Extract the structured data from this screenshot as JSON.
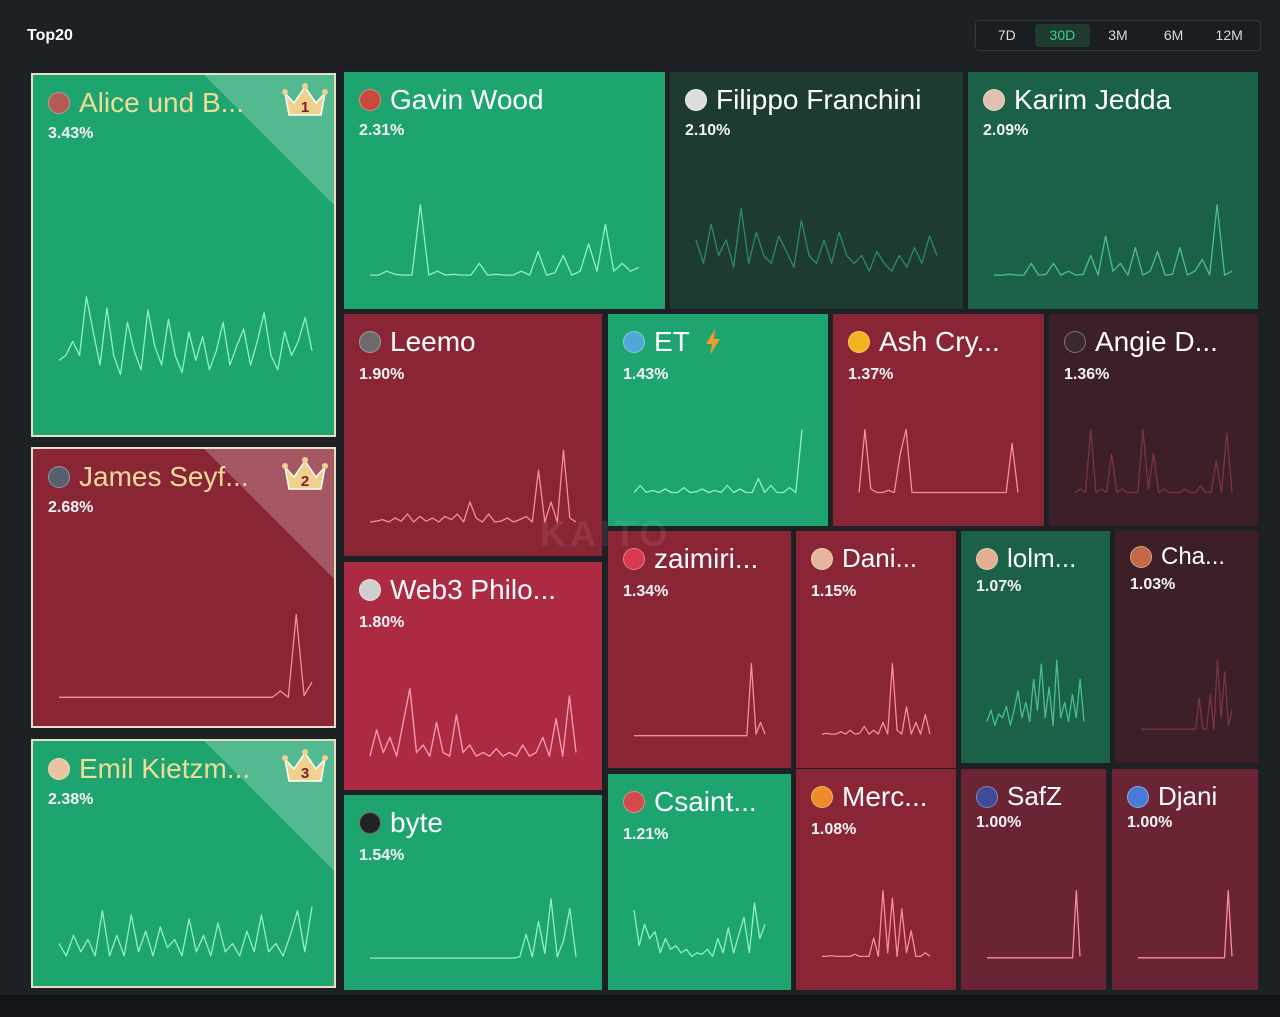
{
  "header": {
    "title": "Top20"
  },
  "ranges": {
    "options": [
      "7D",
      "30D",
      "3M",
      "6M",
      "12M"
    ],
    "selected": "30D"
  },
  "colors": {
    "green_bright": "#1ea46e",
    "green_dark": "#1d3b30",
    "green_mid": "#1a6147",
    "red": "#8a2536",
    "red_bright": "#ad2a43",
    "maroon": "#3d1f27",
    "line_green": "#6ef0b2",
    "line_red": "#ff8aa0",
    "crown_gold": "#efd08c"
  },
  "tiles": [
    {
      "name": "Alice und B...",
      "percent": "3.43%",
      "rank": "1",
      "color": "#1ea46e",
      "line": "#8ff2c1",
      "avatar_color": "#b25a55",
      "spark": [
        0.25,
        0.3,
        0.45,
        0.3,
        0.92,
        0.55,
        0.2,
        0.8,
        0.3,
        0.1,
        0.65,
        0.35,
        0.15,
        0.78,
        0.4,
        0.2,
        0.68,
        0.3,
        0.12,
        0.55,
        0.25,
        0.5,
        0.15,
        0.35,
        0.65,
        0.2,
        0.4,
        0.58,
        0.2,
        0.45,
        0.75,
        0.3,
        0.15,
        0.55,
        0.3,
        0.45,
        0.7,
        0.35
      ]
    },
    {
      "name": "Gavin Wood",
      "percent": "2.31%",
      "rank": "",
      "color": "#1ea46e",
      "line": "#8ff2c1",
      "avatar_color": "#c94a3d",
      "spark": [
        0.05,
        0.05,
        0.1,
        0.06,
        0.05,
        0.05,
        0.95,
        0.05,
        0.1,
        0.05,
        0.06,
        0.05,
        0.05,
        0.2,
        0.05,
        0.06,
        0.05,
        0.05,
        0.1,
        0.05,
        0.35,
        0.05,
        0.08,
        0.3,
        0.05,
        0.1,
        0.45,
        0.1,
        0.7,
        0.1,
        0.2,
        0.1,
        0.15
      ]
    },
    {
      "name": "Filippo Franchini",
      "percent": "2.10%",
      "rank": "",
      "color": "#1d3b30",
      "line": "#2f8b61",
      "avatar_color": "#dddddd",
      "spark": [
        0.5,
        0.2,
        0.7,
        0.3,
        0.5,
        0.15,
        0.9,
        0.2,
        0.6,
        0.3,
        0.2,
        0.55,
        0.35,
        0.15,
        0.75,
        0.3,
        0.2,
        0.5,
        0.2,
        0.6,
        0.3,
        0.2,
        0.3,
        0.1,
        0.35,
        0.2,
        0.1,
        0.3,
        0.15,
        0.4,
        0.2,
        0.55,
        0.3
      ]
    },
    {
      "name": "Karim Jedda",
      "percent": "2.09%",
      "rank": "",
      "color": "#1a6147",
      "line": "#4cc08b",
      "avatar_color": "#e0c0b0",
      "spark": [
        0.05,
        0.05,
        0.06,
        0.05,
        0.05,
        0.2,
        0.05,
        0.06,
        0.2,
        0.05,
        0.1,
        0.05,
        0.06,
        0.3,
        0.05,
        0.55,
        0.1,
        0.2,
        0.05,
        0.4,
        0.05,
        0.1,
        0.35,
        0.05,
        0.06,
        0.4,
        0.05,
        0.1,
        0.25,
        0.05,
        0.95,
        0.05,
        0.1
      ]
    },
    {
      "name": "Leemo",
      "percent": "1.90%",
      "rank": "",
      "color": "#8a2536",
      "line": "#ff8aa0",
      "avatar_color": "#6b6b6b",
      "spark": [
        0.05,
        0.06,
        0.08,
        0.05,
        0.1,
        0.06,
        0.15,
        0.05,
        0.12,
        0.06,
        0.1,
        0.05,
        0.12,
        0.08,
        0.15,
        0.05,
        0.3,
        0.1,
        0.05,
        0.15,
        0.05,
        0.06,
        0.1,
        0.05,
        0.08,
        0.12,
        0.05,
        0.7,
        0.05,
        0.3,
        0.05,
        0.95,
        0.1,
        0.05
      ]
    },
    {
      "name": "ET",
      "percent": "1.43%",
      "rank": "",
      "bolt": true,
      "color": "#1ea46e",
      "line": "#8ff2c1",
      "avatar_color": "#4fa8d8",
      "spark": [
        0.05,
        0.15,
        0.05,
        0.08,
        0.05,
        0.1,
        0.05,
        0.05,
        0.12,
        0.05,
        0.06,
        0.1,
        0.05,
        0.08,
        0.05,
        0.15,
        0.05,
        0.1,
        0.05,
        0.05,
        0.25,
        0.05,
        0.15,
        0.05,
        0.05,
        0.12,
        0.05,
        0.95
      ]
    },
    {
      "name": "Ash Cry...",
      "percent": "1.37%",
      "rank": "",
      "color": "#8a2536",
      "line": "#ff8aa0",
      "avatar_color": "#f2b31f",
      "spark": [
        0.05,
        0.95,
        0.1,
        0.05,
        0.05,
        0.08,
        0.05,
        0.6,
        0.95,
        0.05,
        0.05,
        0.05,
        0.05,
        0.05,
        0.05,
        0.05,
        0.05,
        0.05,
        0.05,
        0.05,
        0.05,
        0.05,
        0.05,
        0.05,
        0.05,
        0.05,
        0.75,
        0.05
      ]
    },
    {
      "name": "Angie D...",
      "percent": "1.36%",
      "rank": "",
      "color": "#3d1f27",
      "line": "#7a3444",
      "avatar_color": "#3a2a2e",
      "spark": [
        0.05,
        0.1,
        0.05,
        0.95,
        0.05,
        0.1,
        0.05,
        0.6,
        0.05,
        0.1,
        0.05,
        0.05,
        0.05,
        0.95,
        0.1,
        0.6,
        0.05,
        0.1,
        0.05,
        0.05,
        0.05,
        0.1,
        0.05,
        0.05,
        0.15,
        0.05,
        0.05,
        0.5,
        0.05,
        0.9,
        0.05
      ]
    },
    {
      "name": "James Seyf...",
      "percent": "2.68%",
      "rank": "2",
      "color": "#8a2536",
      "line": "#ff8aa0",
      "avatar_color": "#55626e",
      "spark": [
        0.03,
        0.03,
        0.03,
        0.03,
        0.03,
        0.03,
        0.03,
        0.03,
        0.03,
        0.03,
        0.03,
        0.03,
        0.03,
        0.03,
        0.03,
        0.03,
        0.03,
        0.03,
        0.03,
        0.03,
        0.03,
        0.03,
        0.03,
        0.03,
        0.03,
        0.03,
        0.03,
        0.03,
        0.1,
        0.03,
        0.95,
        0.05,
        0.2
      ]
    },
    {
      "name": "Web3 Philo...",
      "percent": "1.80%",
      "rank": "",
      "color": "#ad2a43",
      "line": "#ff9fb1",
      "avatar_color": "#cfcfcf",
      "spark": [
        0.05,
        0.4,
        0.1,
        0.3,
        0.05,
        0.5,
        0.95,
        0.1,
        0.2,
        0.05,
        0.5,
        0.1,
        0.05,
        0.6,
        0.1,
        0.2,
        0.05,
        0.1,
        0.05,
        0.15,
        0.05,
        0.1,
        0.05,
        0.2,
        0.05,
        0.1,
        0.3,
        0.05,
        0.55,
        0.05,
        0.85,
        0.1
      ]
    },
    {
      "name": "zaimiri...",
      "percent": "1.34%",
      "rank": "",
      "color": "#8a2536",
      "line": "#ff8aa0",
      "avatar_color": "#d83a4d",
      "spark": [
        0.03,
        0.03,
        0.03,
        0.03,
        0.03,
        0.03,
        0.03,
        0.03,
        0.03,
        0.03,
        0.03,
        0.03,
        0.03,
        0.03,
        0.03,
        0.03,
        0.03,
        0.03,
        0.03,
        0.03,
        0.03,
        0.03,
        0.03,
        0.03,
        0.03,
        0.03,
        0.95,
        0.05,
        0.2,
        0.05
      ]
    },
    {
      "name": "Dani...",
      "percent": "1.15%",
      "rank": "",
      "color": "#8a2536",
      "line": "#ff8aa0",
      "avatar_color": "#e5b69a",
      "spark": [
        0.05,
        0.06,
        0.05,
        0.05,
        0.08,
        0.05,
        0.1,
        0.05,
        0.06,
        0.15,
        0.05,
        0.1,
        0.05,
        0.2,
        0.05,
        0.95,
        0.1,
        0.05,
        0.4,
        0.05,
        0.2,
        0.05,
        0.3,
        0.05
      ]
    },
    {
      "name": "lolm...",
      "percent": "1.07%",
      "rank": "",
      "color": "#1a6147",
      "line": "#4cc08b",
      "avatar_color": "#e0b090",
      "spark": [
        0.15,
        0.3,
        0.1,
        0.25,
        0.2,
        0.35,
        0.1,
        0.3,
        0.55,
        0.2,
        0.4,
        0.15,
        0.7,
        0.3,
        0.9,
        0.2,
        0.6,
        0.1,
        0.95,
        0.2,
        0.4,
        0.15,
        0.5,
        0.2,
        0.7,
        0.15
      ]
    },
    {
      "name": "Cha...",
      "percent": "1.03%",
      "rank": "",
      "color": "#3d1f27",
      "line": "#7a3444",
      "avatar_color": "#c26a48",
      "spark": [
        0.05,
        0.05,
        0.05,
        0.05,
        0.05,
        0.05,
        0.05,
        0.05,
        0.05,
        0.05,
        0.05,
        0.05,
        0.05,
        0.05,
        0.05,
        0.05,
        0.45,
        0.05,
        0.05,
        0.5,
        0.05,
        0.95,
        0.2,
        0.8,
        0.1,
        0.3
      ]
    },
    {
      "name": "Emil Kietzm...",
      "percent": "2.38%",
      "rank": "3",
      "color": "#1ea46e",
      "line": "#8ff2c1",
      "avatar_color": "#e8c4a2",
      "spark": [
        0.2,
        0.05,
        0.3,
        0.1,
        0.25,
        0.05,
        0.6,
        0.05,
        0.3,
        0.05,
        0.55,
        0.1,
        0.35,
        0.05,
        0.4,
        0.15,
        0.25,
        0.05,
        0.5,
        0.1,
        0.3,
        0.05,
        0.45,
        0.1,
        0.2,
        0.05,
        0.35,
        0.1,
        0.55,
        0.1,
        0.2,
        0.05,
        0.3,
        0.6,
        0.1,
        0.65
      ]
    },
    {
      "name": "byte",
      "percent": "1.54%",
      "rank": "",
      "color": "#1ea46e",
      "line": "#8ff2c1",
      "avatar_color": "#222222",
      "spark": [
        0.03,
        0.03,
        0.03,
        0.03,
        0.03,
        0.03,
        0.03,
        0.03,
        0.03,
        0.03,
        0.03,
        0.03,
        0.03,
        0.03,
        0.03,
        0.03,
        0.03,
        0.03,
        0.03,
        0.03,
        0.03,
        0.03,
        0.03,
        0.03,
        0.05,
        0.4,
        0.05,
        0.6,
        0.1,
        0.95,
        0.05,
        0.3,
        0.8,
        0.05
      ]
    },
    {
      "name": "Csaint...",
      "percent": "1.21%",
      "rank": "",
      "color": "#1ea46e",
      "line": "#8ff2c1",
      "avatar_color": "#d44a4a",
      "spark": [
        0.7,
        0.2,
        0.5,
        0.3,
        0.4,
        0.1,
        0.3,
        0.15,
        0.2,
        0.1,
        0.15,
        0.05,
        0.1,
        0.08,
        0.15,
        0.05,
        0.3,
        0.1,
        0.45,
        0.1,
        0.35,
        0.6,
        0.1,
        0.8,
        0.3,
        0.5
      ]
    },
    {
      "name": "Merc...",
      "percent": "1.08%",
      "rank": "",
      "color": "#8a2536",
      "line": "#ff8aa0",
      "avatar_color": "#f08a2a",
      "spark": [
        0.05,
        0.05,
        0.06,
        0.05,
        0.05,
        0.05,
        0.05,
        0.08,
        0.05,
        0.05,
        0.05,
        0.3,
        0.05,
        0.95,
        0.1,
        0.85,
        0.05,
        0.7,
        0.1,
        0.4,
        0.05,
        0.05,
        0.1,
        0.05
      ]
    },
    {
      "name": "SafZ",
      "percent": "1.00%",
      "rank": "",
      "color": "#6b2433",
      "line": "#ff8aa0",
      "avatar_color": "#404a9a",
      "spark": [
        0.03,
        0.03,
        0.03,
        0.03,
        0.03,
        0.03,
        0.03,
        0.03,
        0.03,
        0.03,
        0.03,
        0.03,
        0.03,
        0.03,
        0.03,
        0.03,
        0.03,
        0.03,
        0.03,
        0.03,
        0.03,
        0.03,
        0.03,
        0.03,
        0.95,
        0.05
      ]
    },
    {
      "name": "Djani",
      "percent": "1.00%",
      "rank": "",
      "color": "#6b2433",
      "line": "#ff8aa0",
      "avatar_color": "#4a7ad8",
      "spark": [
        0.03,
        0.03,
        0.03,
        0.03,
        0.03,
        0.03,
        0.03,
        0.03,
        0.03,
        0.03,
        0.03,
        0.03,
        0.03,
        0.03,
        0.03,
        0.03,
        0.03,
        0.03,
        0.03,
        0.03,
        0.03,
        0.03,
        0.03,
        0.03,
        0.95,
        0.05
      ]
    }
  ]
}
